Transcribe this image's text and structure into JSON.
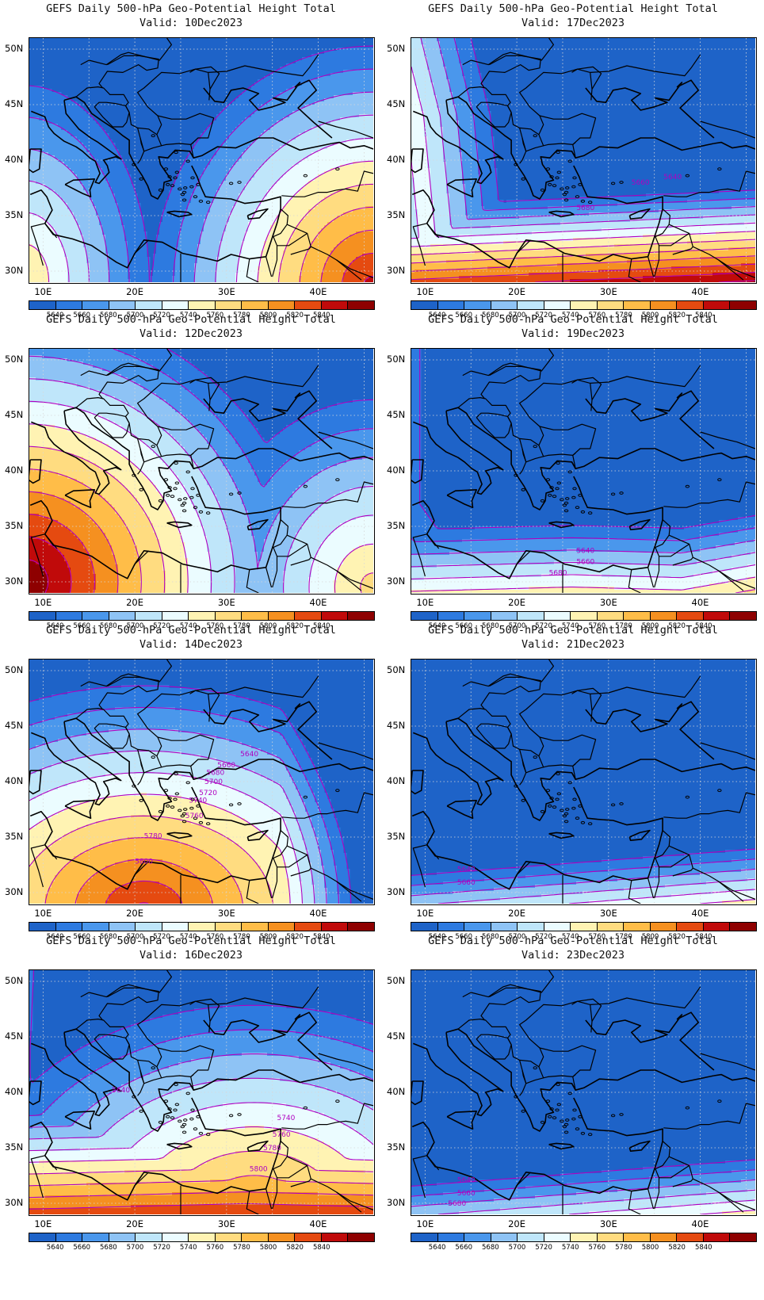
{
  "colorbar": {
    "colors": [
      "#1e63c8",
      "#2d7ae0",
      "#4a97ec",
      "#8ec3f5",
      "#bfe6fa",
      "#ebfcff",
      "#fff3b3",
      "#ffdc80",
      "#ffbd48",
      "#f59020",
      "#e54a10",
      "#c00a0a",
      "#8e0000"
    ],
    "ticks": [
      "5640",
      "5660",
      "5680",
      "5700",
      "5720",
      "5740",
      "5760",
      "5780",
      "5800",
      "5820",
      "5840"
    ]
  },
  "contour_color": "#b000c0",
  "lat_labels": [
    "50N",
    "45N",
    "40N",
    "35N",
    "30N"
  ],
  "lon_labels": [
    "10E",
    "20E",
    "30E",
    "40E"
  ],
  "panels": [
    {
      "title": "GEFS Daily 500-hPa Geo-Potential Height Total",
      "valid": "Valid: 10Dec2023",
      "pattern": "sw_se_ridge",
      "contour_labels": []
    },
    {
      "title": "GEFS Daily 500-hPa Geo-Potential Height Total",
      "valid": "Valid: 17Dec2023",
      "pattern": "south_band_west_lobe",
      "contour_labels": [
        "5640",
        "5660",
        "5680"
      ]
    },
    {
      "title": "GEFS Daily 500-hPa Geo-Potential Height Total",
      "valid": "Valid: 12Dec2023",
      "pattern": "southwest_ridge",
      "contour_labels": []
    },
    {
      "title": "GEFS Daily 500-hPa Geo-Potential Height Total",
      "valid": "Valid: 19Dec2023",
      "pattern": "weak_south",
      "contour_labels": [
        "5640",
        "5660",
        "5680"
      ]
    },
    {
      "title": "GEFS Daily 500-hPa Geo-Potential Height Total",
      "valid": "Valid: 14Dec2023",
      "pattern": "central_ridge",
      "contour_labels": [
        "5640",
        "5660",
        "5680",
        "5700",
        "5720",
        "5740",
        "5760",
        "5780",
        "5800"
      ]
    },
    {
      "title": "GEFS Daily 500-hPa Geo-Potential Height Total",
      "valid": "Valid: 21Dec2023",
      "pattern": "weak_south_flat",
      "contour_labels": [
        "5640",
        "5660"
      ]
    },
    {
      "title": "GEFS Daily 500-hPa Geo-Potential Height Total",
      "valid": "Valid: 16Dec2023",
      "pattern": "southeast_ridge",
      "contour_labels": [
        "5640",
        "5740",
        "5760",
        "5780",
        "5800"
      ]
    },
    {
      "title": "GEFS Daily 500-hPa Geo-Potential Height Total",
      "valid": "Valid: 23Dec2023",
      "pattern": "weak_south_flat",
      "contour_labels": [
        "5640",
        "5660",
        "5680"
      ]
    }
  ]
}
